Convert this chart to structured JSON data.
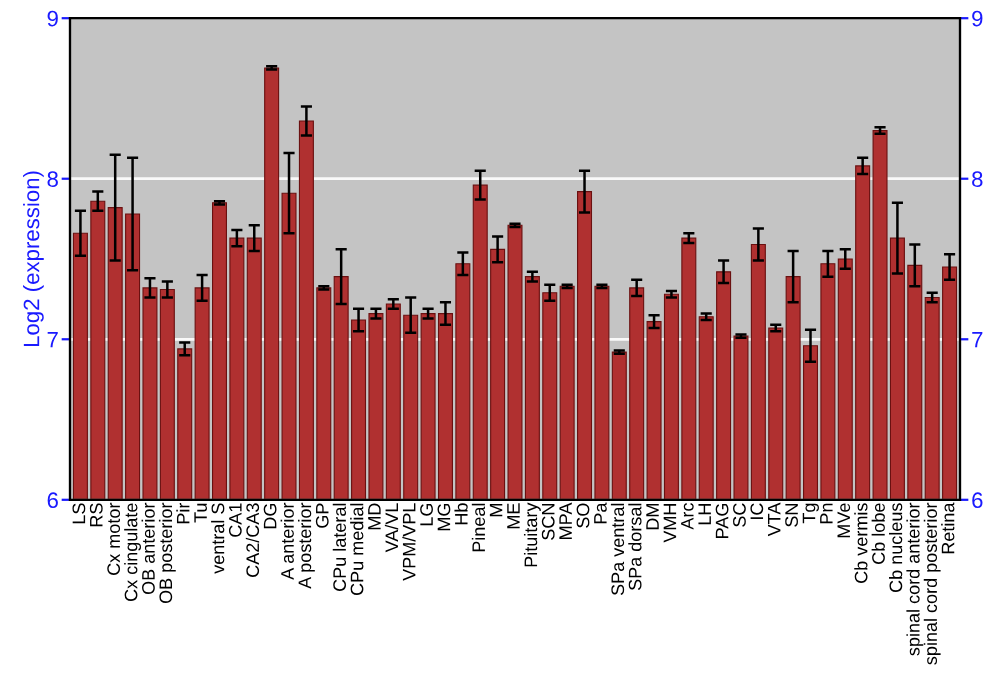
{
  "chart_data": {
    "type": "bar",
    "ylabel": "Log2 (expression)",
    "categories": [
      "LS",
      "RS",
      "Cx motor",
      "Cx cingulate",
      "OB anterior",
      "OB posterior",
      "Pir",
      "Tu",
      "ventral S",
      "CA1",
      "CA2/CA3",
      "DG",
      "A anterior",
      "A posterior",
      "GP",
      "CPu lateral",
      "CPu medial",
      "MD",
      "VA/VL",
      "VPM/VPL",
      "LG",
      "MG",
      "Hb",
      "Pineal",
      "M",
      "ME",
      "Pituitary",
      "SCN",
      "MPA",
      "SO",
      "Pa",
      "SPa ventral",
      "SPa dorsal",
      "DM",
      "VMH",
      "Arc",
      "LH",
      "PAG",
      "SC",
      "IC",
      "VTA",
      "SN",
      "Tg",
      "Pn",
      "MVe",
      "Cb vermis",
      "Cb lobe",
      "Cb nucleus",
      "spinal cord anterior",
      "spinal cord posterior",
      "Retina"
    ],
    "values": [
      7.66,
      7.86,
      7.82,
      7.78,
      7.32,
      7.31,
      6.94,
      7.32,
      7.85,
      7.63,
      7.63,
      8.69,
      7.91,
      8.36,
      7.32,
      7.39,
      7.12,
      7.16,
      7.22,
      7.15,
      7.16,
      7.16,
      7.47,
      7.96,
      7.56,
      7.71,
      7.39,
      7.29,
      7.33,
      7.92,
      7.33,
      6.92,
      7.32,
      7.11,
      7.28,
      7.63,
      7.14,
      7.42,
      7.02,
      7.59,
      7.07,
      7.39,
      6.96,
      7.47,
      7.5,
      8.08,
      8.3,
      7.63,
      7.46,
      7.26,
      7.45
    ],
    "errors": [
      0.14,
      0.06,
      0.33,
      0.35,
      0.06,
      0.05,
      0.04,
      0.08,
      0.01,
      0.05,
      0.08,
      0.01,
      0.25,
      0.09,
      0.01,
      0.17,
      0.07,
      0.03,
      0.03,
      0.11,
      0.03,
      0.07,
      0.07,
      0.09,
      0.08,
      0.01,
      0.03,
      0.05,
      0.01,
      0.13,
      0.01,
      0.01,
      0.05,
      0.04,
      0.02,
      0.03,
      0.02,
      0.07,
      0.01,
      0.1,
      0.02,
      0.16,
      0.1,
      0.08,
      0.06,
      0.05,
      0.02,
      0.22,
      0.13,
      0.03,
      0.08
    ],
    "color": "#b03030",
    "ylim": [
      6,
      9
    ],
    "yticks": [
      6,
      7,
      8,
      9
    ],
    "y2lim": [
      6,
      9
    ],
    "y2ticks": [
      6,
      7,
      8,
      9
    ],
    "grid": "y"
  }
}
